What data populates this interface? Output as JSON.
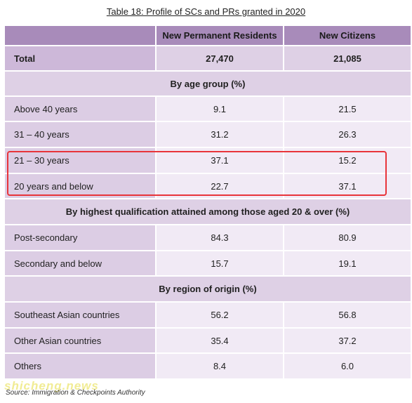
{
  "title": "Table 18: Profile of SCs and PRs granted in 2020",
  "columns": [
    "",
    "New Permanent Residents",
    "New Citizens"
  ],
  "total": {
    "label": "Total",
    "pr": "27,470",
    "citizens": "21,085"
  },
  "sections": [
    {
      "heading": "By age group (%)",
      "rows": [
        {
          "label": "Above 40 years",
          "pr": "9.1",
          "citizens": "21.5"
        },
        {
          "label": "31 – 40 years",
          "pr": "31.2",
          "citizens": "26.3"
        },
        {
          "label": "21 – 30 years",
          "pr": "37.1",
          "citizens": "15.2"
        },
        {
          "label": "20 years and below",
          "pr": "22.7",
          "citizens": "37.1"
        }
      ]
    },
    {
      "heading": "By highest qualification attained among those aged 20 & over (%)",
      "rows": [
        {
          "label": "Post-secondary",
          "pr": "84.3",
          "citizens": "80.9"
        },
        {
          "label": "Secondary and below",
          "pr": "15.7",
          "citizens": "19.1"
        }
      ]
    },
    {
      "heading": "By region of origin (%)",
      "rows": [
        {
          "label": "Southeast Asian countries",
          "pr": "56.2",
          "citizens": "56.8"
        },
        {
          "label": "Other Asian countries",
          "pr": "35.4",
          "citizens": "37.2"
        },
        {
          "label": "Others",
          "pr": "8.4",
          "citizens": "6.0"
        }
      ]
    }
  ],
  "source": "Source: Immigration & Checkpoints Authority",
  "watermark": "shicheng.news"
}
